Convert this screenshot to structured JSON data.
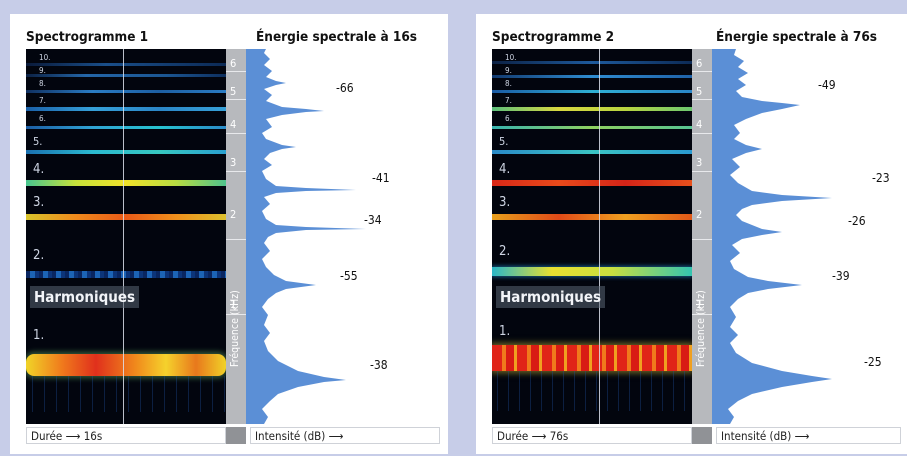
{
  "panels": [
    {
      "spectrogram_title": "Spectrogramme 1",
      "energy_title": "Énergie spectrale à 16s",
      "harmonics_label": "Harmoniques",
      "harmonic_numbers": [
        "1.",
        "2.",
        "3.",
        "4.",
        "5.",
        "6.",
        "7.",
        "8.",
        "9.",
        "10."
      ],
      "freq_ticks": [
        "1",
        "2",
        "3",
        "4",
        "5",
        "6"
      ],
      "freq_axis_label": "Fréquence (kHz)",
      "duration_label": "Durée",
      "duration_value": "16s",
      "intensity_label": "Intensité (dB)",
      "peak_values": [
        "-66",
        "-41",
        "-34",
        "-55",
        "-38"
      ]
    },
    {
      "spectrogram_title": "Spectrogramme 2",
      "energy_title": "Énergie spectrale à 76s",
      "harmonics_label": "Harmoniques",
      "harmonic_numbers": [
        "1.",
        "2.",
        "3.",
        "4.",
        "5.",
        "6.",
        "7.",
        "8.",
        "9.",
        "10."
      ],
      "freq_ticks": [
        "1",
        "2",
        "3",
        "4",
        "5",
        "6"
      ],
      "freq_axis_label": "Fréquence (kHz)",
      "duration_label": "Durée",
      "duration_value": "76s",
      "intensity_label": "Intensité (dB)",
      "peak_values": [
        "-49",
        "-23",
        "-26",
        "-39",
        "-25"
      ]
    }
  ],
  "colors": {
    "background": "#c7cde8",
    "spectrum_fill": "#5b8fd6",
    "spectrogram_bg": "#02050e"
  }
}
